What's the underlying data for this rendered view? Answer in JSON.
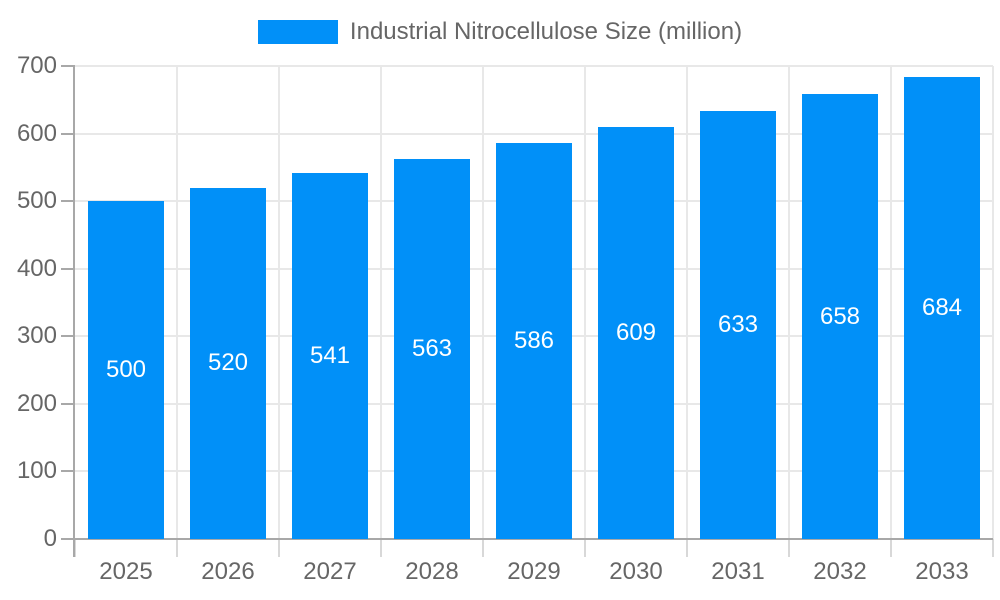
{
  "legend": {
    "label": "Industrial Nitrocellulose Size (million)"
  },
  "colors": {
    "bar": "#0190F8",
    "axis_text": "#666666",
    "data_label": "#ffffff",
    "gridline": "#e8e8e8",
    "axis_line": "#a8a8a8",
    "x_tick": "#d8d8d8",
    "background": "#ffffff"
  },
  "chart_data": {
    "type": "bar",
    "title": "",
    "xlabel": "",
    "ylabel": "",
    "categories": [
      "2025",
      "2026",
      "2027",
      "2028",
      "2029",
      "2030",
      "2031",
      "2032",
      "2033"
    ],
    "values": [
      500,
      520,
      541,
      563,
      586,
      609,
      633,
      658,
      684
    ],
    "series_name": "Industrial Nitrocellulose Size (million)",
    "ylim": [
      0,
      700
    ],
    "yticks": [
      0,
      100,
      200,
      300,
      400,
      500,
      600,
      700
    ],
    "grid": true,
    "legend_position": "top",
    "data_labels": "inside-middle"
  }
}
